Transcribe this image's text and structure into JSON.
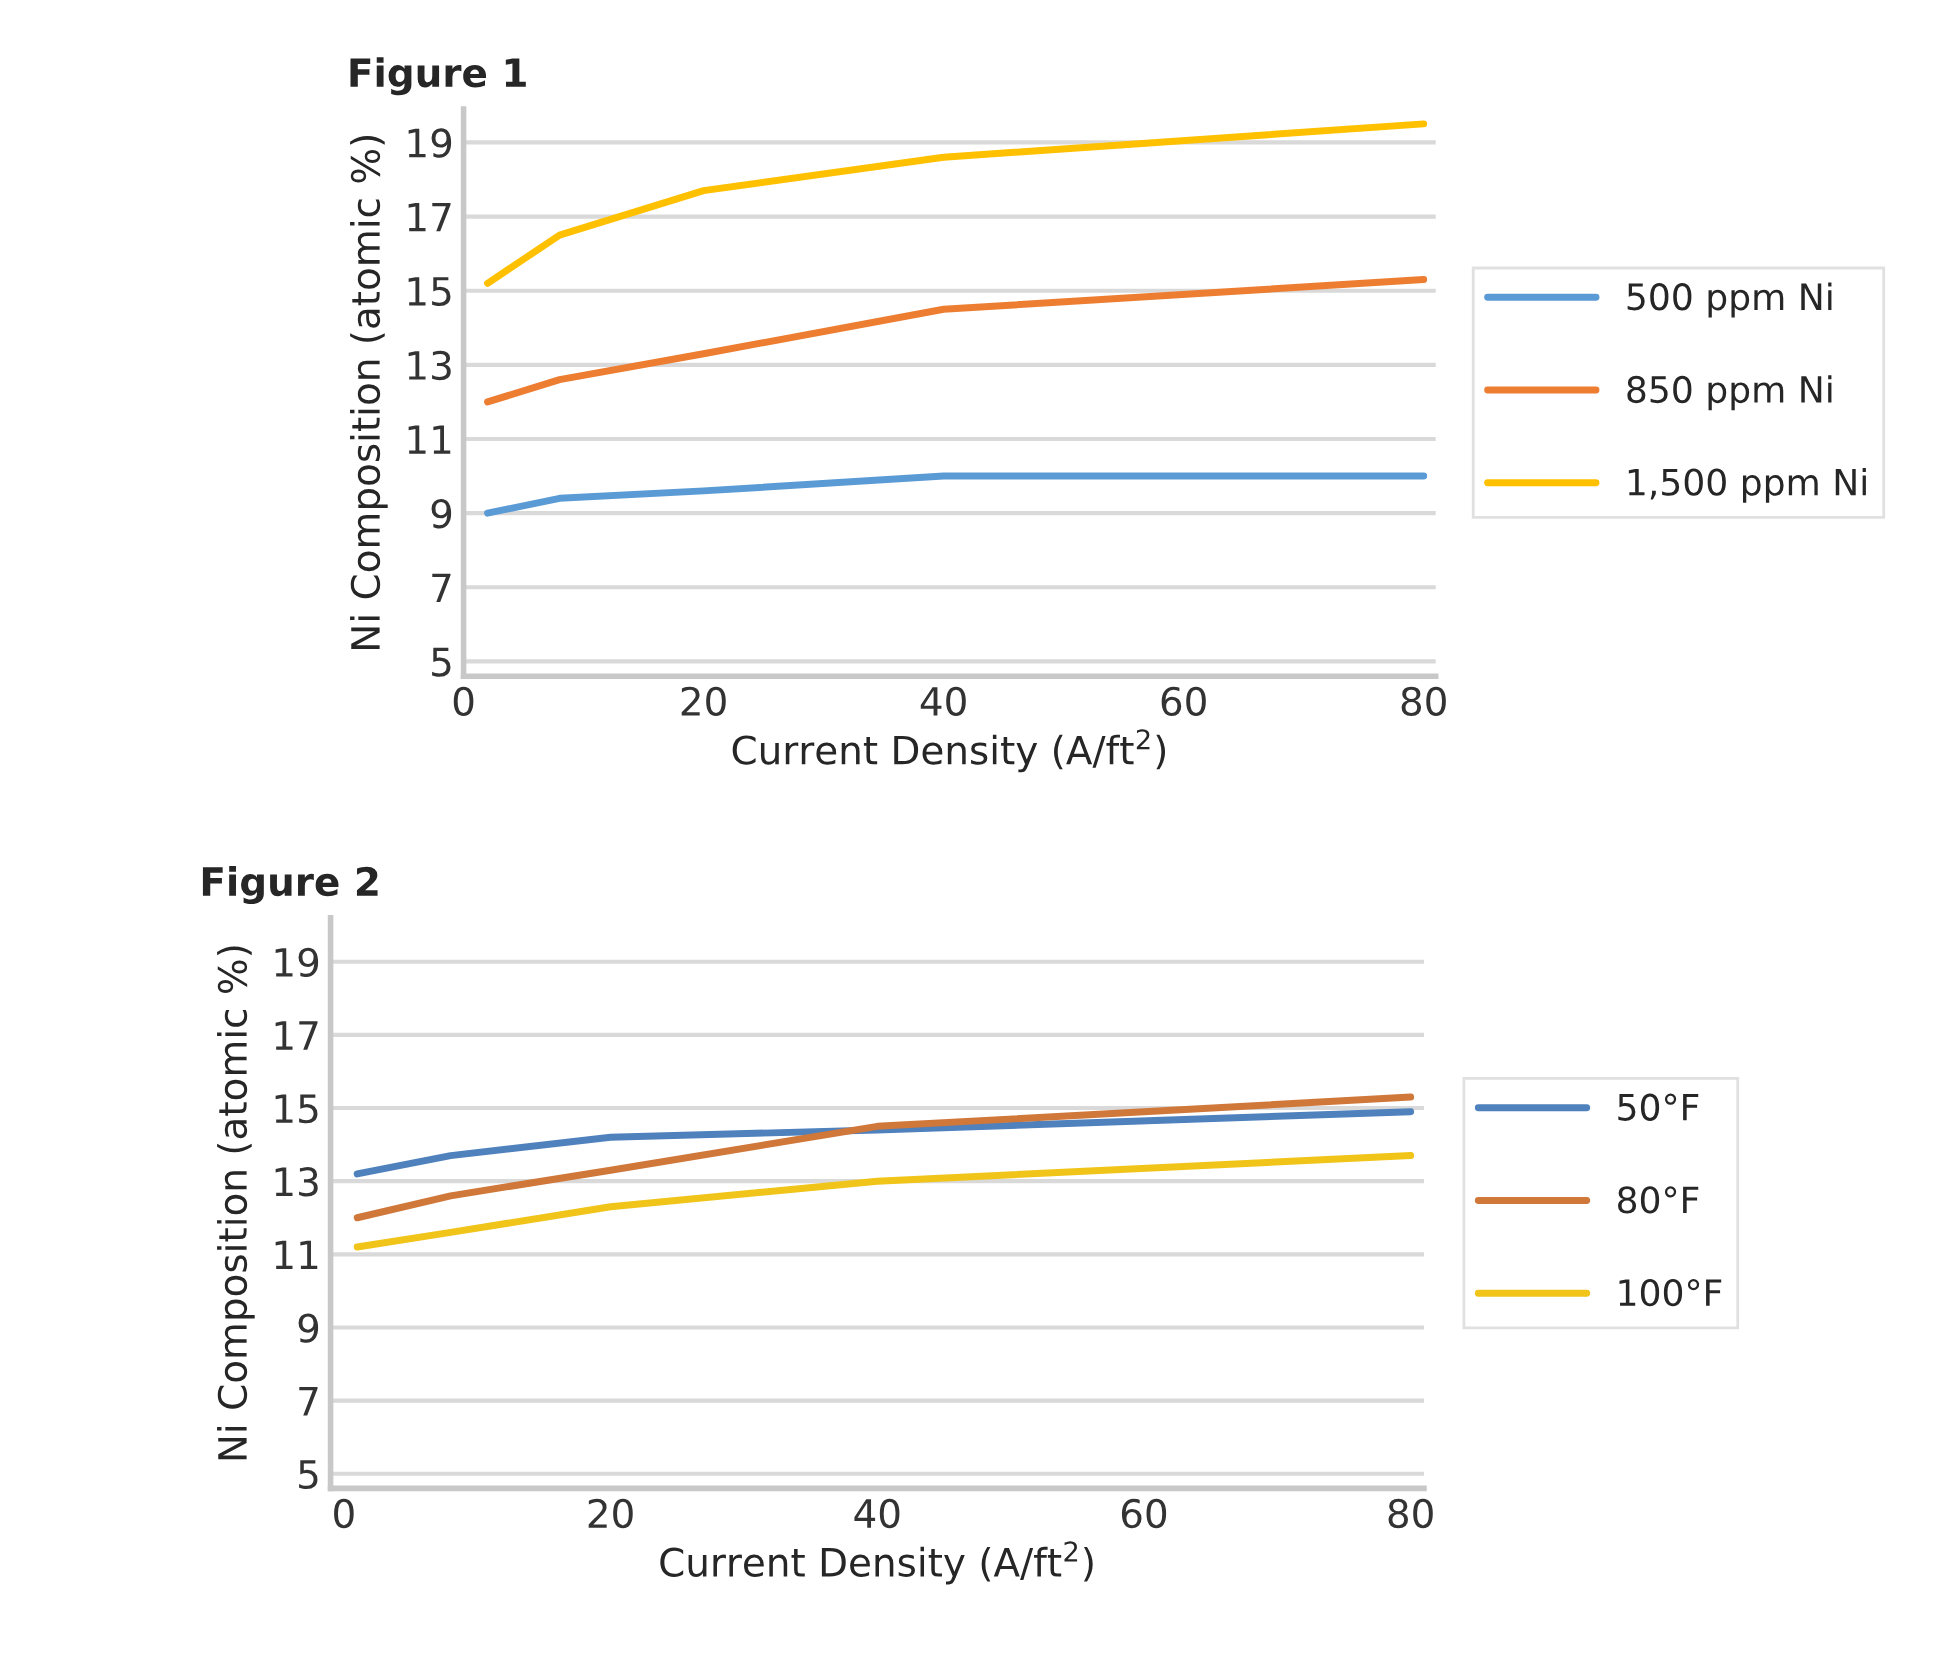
{
  "chart_data": [
    {
      "type": "line",
      "title": "Figure 1",
      "xlabel": "Current Density (A/ft$^{2}$)",
      "ylabel": "Ni Composition (atomic %)",
      "xlim": [
        0,
        81
      ],
      "ylim": [
        4.6,
        19.9
      ],
      "xticks": [
        0,
        20,
        40,
        60,
        80
      ],
      "yticks": [
        5,
        7,
        9,
        11,
        13,
        15,
        17,
        19
      ],
      "grid": "y",
      "legend": "right",
      "marker": "none",
      "line_style": "solid",
      "series": [
        {
          "name": "500 ppm Ni",
          "color": "#5b9bd5",
          "x": [
            2,
            8,
            20,
            40,
            80
          ],
          "values": [
            9.0,
            9.4,
            9.6,
            10.0,
            10.0
          ]
        },
        {
          "name": "850 ppm Ni",
          "color": "#ed7d31",
          "x": [
            2,
            8,
            20,
            40,
            80
          ],
          "values": [
            12.0,
            12.6,
            13.3,
            14.5,
            15.3
          ]
        },
        {
          "name": "1,500 ppm Ni",
          "color": "#ffc000",
          "x": [
            2,
            8,
            20,
            40,
            80
          ],
          "values": [
            15.2,
            16.5,
            17.7,
            18.6,
            19.5
          ]
        }
      ]
    },
    {
      "type": "line",
      "title": "Figure 2",
      "xlabel": "Current Density (A/ft$^{2}$)",
      "ylabel": "Ni Composition (atomic %)",
      "xlim": [
        -1,
        81
      ],
      "ylim": [
        4.6,
        20.2
      ],
      "xticks": [
        0,
        20,
        40,
        60,
        80
      ],
      "yticks": [
        5,
        7,
        9,
        11,
        13,
        15,
        17,
        19
      ],
      "grid": "y",
      "legend": "right",
      "marker": "none",
      "line_style": "solid",
      "series": [
        {
          "name": "50°F",
          "color": "#4f81bd",
          "x": [
            1,
            8,
            20,
            40,
            80
          ],
          "values": [
            13.2,
            13.7,
            14.2,
            14.4,
            14.9
          ]
        },
        {
          "name": "80°F",
          "color": "#d0773a",
          "x": [
            1,
            8,
            20,
            40,
            80
          ],
          "values": [
            12.0,
            12.6,
            13.3,
            14.5,
            15.3
          ]
        },
        {
          "name": "100°F",
          "color": "#f0c419",
          "x": [
            1,
            8,
            20,
            40,
            80
          ],
          "values": [
            11.2,
            11.6,
            12.3,
            13.0,
            13.7
          ]
        }
      ]
    }
  ]
}
